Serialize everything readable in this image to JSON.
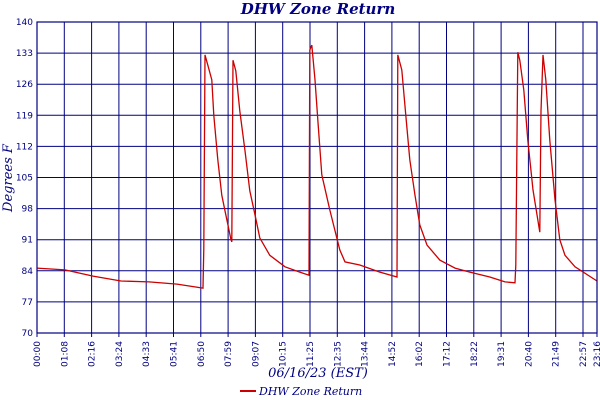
{
  "chart_data": {
    "type": "line",
    "title": "DHW Zone Return",
    "xlabel": "06/16/23 (EST)",
    "ylabel": "Degrees F",
    "ylim": [
      70,
      140
    ],
    "yticks": [
      "70",
      "77",
      "84",
      "91",
      "98",
      "105",
      "112",
      "119",
      "126",
      "133",
      "140"
    ],
    "xticks": [
      "00:00",
      "01:08",
      "02:16",
      "03:24",
      "04:33",
      "05:41",
      "06:50",
      "07:59",
      "09:07",
      "10:15",
      "11:25",
      "12:35",
      "13:44",
      "14:52",
      "16:02",
      "17:12",
      "18:22",
      "19:31",
      "20:40",
      "21:49",
      "22:57",
      "23:16"
    ],
    "xlim": [
      "00:00",
      "23:20"
    ],
    "grid": true,
    "legend_position": "bottom",
    "colors": {
      "series": "#cc0000",
      "grid": "#000080",
      "text": "#000080"
    },
    "series": [
      {
        "name": "DHW Zone Return",
        "points": [
          [
            "00:00",
            84.6
          ],
          [
            "01:10",
            84.2
          ],
          [
            "02:20",
            82.8
          ],
          [
            "03:30",
            81.7
          ],
          [
            "04:40",
            81.5
          ],
          [
            "05:50",
            81.0
          ],
          [
            "06:55",
            80.1
          ],
          [
            "06:57",
            89
          ],
          [
            "07:00",
            132.6
          ],
          [
            "07:07",
            130.3
          ],
          [
            "07:17",
            127
          ],
          [
            "07:22",
            119
          ],
          [
            "07:32",
            109
          ],
          [
            "07:42",
            101
          ],
          [
            "07:52",
            96.6
          ],
          [
            "08:05",
            91
          ],
          [
            "08:07",
            90.5
          ],
          [
            "08:10",
            131.4
          ],
          [
            "08:17",
            129
          ],
          [
            "08:27",
            120
          ],
          [
            "08:40",
            111
          ],
          [
            "08:52",
            102
          ],
          [
            "09:05",
            96.6
          ],
          [
            "09:17",
            91.4
          ],
          [
            "09:42",
            87.5
          ],
          [
            "10:20",
            84.9
          ],
          [
            "10:57",
            83.7
          ],
          [
            "11:20",
            83
          ],
          [
            "11:22",
            133.7
          ],
          [
            "11:27",
            134.8
          ],
          [
            "11:35",
            127
          ],
          [
            "11:42",
            118
          ],
          [
            "11:52",
            105.6
          ],
          [
            "12:12",
            97.7
          ],
          [
            "12:37",
            88.7
          ],
          [
            "12:50",
            86
          ],
          [
            "13:27",
            85.3
          ],
          [
            "14:17",
            83.7
          ],
          [
            "15:00",
            82.6
          ],
          [
            "15:02",
            132.6
          ],
          [
            "15:12",
            129.2
          ],
          [
            "15:22",
            119
          ],
          [
            "15:32",
            109
          ],
          [
            "15:45",
            101
          ],
          [
            "15:57",
            94.3
          ],
          [
            "16:15",
            89.8
          ],
          [
            "16:47",
            86.4
          ],
          [
            "17:25",
            84.6
          ],
          [
            "18:02",
            83.7
          ],
          [
            "18:52",
            82.6
          ],
          [
            "19:30",
            81.5
          ],
          [
            "19:55",
            81.3
          ],
          [
            "19:57",
            85.3
          ],
          [
            "20:02",
            133.2
          ],
          [
            "20:07",
            131.4
          ],
          [
            "20:17",
            124.7
          ],
          [
            "20:27",
            113.4
          ],
          [
            "20:40",
            102.2
          ],
          [
            "20:50",
            96.6
          ],
          [
            "20:57",
            92.7
          ],
          [
            "21:00",
            120
          ],
          [
            "21:05",
            132.6
          ],
          [
            "21:12",
            127
          ],
          [
            "21:22",
            113.4
          ],
          [
            "21:35",
            100
          ],
          [
            "21:47",
            91
          ],
          [
            "22:00",
            87.5
          ],
          [
            "22:25",
            84.9
          ],
          [
            "23:20",
            81.7
          ]
        ]
      }
    ]
  }
}
